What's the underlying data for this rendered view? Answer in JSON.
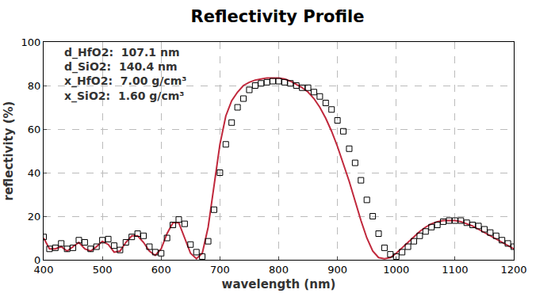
{
  "chart_data": {
    "type": "line",
    "title": "Reflectivity Profile",
    "x_label": "wavelength (nm)",
    "y_label": "reflectivity (%)",
    "annotations": [
      "d_HfO2:  107.1 nm",
      "d_SiO2:  140.4 nm",
      "x_HfO2:  7.00 g/cm³",
      "x_SiO2:  1.60 g/cm³"
    ],
    "x": [
      400,
      410,
      420,
      430,
      440,
      450,
      460,
      470,
      480,
      490,
      500,
      510,
      520,
      530,
      540,
      550,
      560,
      570,
      580,
      590,
      600,
      610,
      620,
      630,
      640,
      650,
      660,
      670,
      680,
      690,
      700,
      710,
      720,
      730,
      740,
      750,
      760,
      770,
      780,
      790,
      800,
      810,
      820,
      830,
      840,
      850,
      860,
      870,
      880,
      890,
      900,
      910,
      920,
      930,
      940,
      950,
      960,
      970,
      980,
      990,
      1000,
      1010,
      1020,
      1030,
      1040,
      1050,
      1060,
      1070,
      1080,
      1090,
      1100,
      1110,
      1120,
      1130,
      1140,
      1150,
      1160,
      1170,
      1180,
      1190,
      1200
    ],
    "series": [
      {
        "type": "line",
        "color": "#c0283c",
        "line_style": "solid",
        "values": [
          10,
          5,
          5,
          6,
          4,
          6,
          8,
          5,
          4,
          6,
          8.5,
          7,
          3.5,
          4,
          8,
          11,
          11,
          8,
          4,
          2,
          5,
          12,
          17,
          17,
          10,
          3,
          0.5,
          3,
          15,
          35,
          53,
          66,
          73,
          77,
          80,
          81.5,
          82.5,
          83,
          83.5,
          83.5,
          83.5,
          83,
          82,
          80.5,
          79,
          77,
          74,
          70,
          65,
          59,
          52,
          44,
          36,
          27,
          18,
          10,
          4,
          1,
          0.5,
          1,
          3,
          5.5,
          8,
          10.5,
          13,
          15,
          16.5,
          17.5,
          18,
          18,
          18,
          17.5,
          16.5,
          15.5,
          14,
          12.5,
          11,
          9.5,
          8,
          6.5,
          5
        ]
      },
      {
        "type": "scatter",
        "color": "#000000",
        "marker": "square-open",
        "values": [
          10.5,
          5,
          5.5,
          7.5,
          5,
          5.5,
          9,
          8,
          5,
          6,
          9,
          9.5,
          6.5,
          4.5,
          8,
          10.5,
          12,
          11,
          6,
          3.5,
          3,
          10,
          16,
          18.5,
          16.5,
          7,
          3.5,
          1.5,
          8.5,
          23,
          40,
          53,
          63,
          70,
          74,
          78,
          80,
          81,
          81.5,
          82,
          82,
          81.5,
          81,
          80,
          79,
          79,
          77,
          75,
          72,
          69,
          64,
          59,
          51,
          44.5,
          36.5,
          27.5,
          20,
          12,
          5.5,
          2.5,
          1.5,
          3.5,
          6,
          8.5,
          11,
          13,
          15,
          16,
          17.5,
          18,
          18,
          18,
          17,
          16,
          15.5,
          14,
          12.5,
          11,
          9,
          7.5,
          6
        ]
      }
    ],
    "xlim": [
      400,
      1200
    ],
    "xticks": [
      400,
      500,
      600,
      700,
      800,
      900,
      1000,
      1100,
      1200
    ],
    "ylim": [
      0,
      100
    ],
    "yticks": [
      0,
      20,
      40,
      60,
      80,
      100
    ],
    "grid": true
  }
}
